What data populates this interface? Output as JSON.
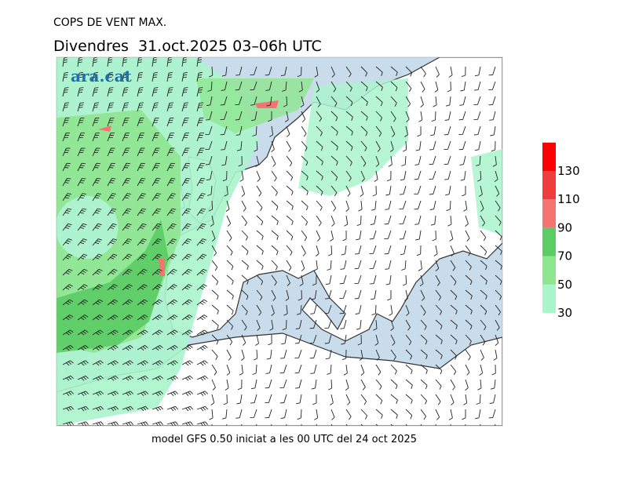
{
  "header": {
    "title": "COPS DE VENT MAX.",
    "subtitle": "Divendres  31.oct.2025 03–06h UTC"
  },
  "logo": "ara.cat",
  "footer": "model GFS 0.50 iniciat a les 00 UTC del 24 oct 2025",
  "legend": {
    "levels": [
      30,
      50,
      70,
      90,
      110,
      130
    ],
    "colors": [
      "#aaf5cc",
      "#8ee68e",
      "#5ccc64",
      "#f47474",
      "#f03c3c",
      "#ff0000"
    ]
  }
}
